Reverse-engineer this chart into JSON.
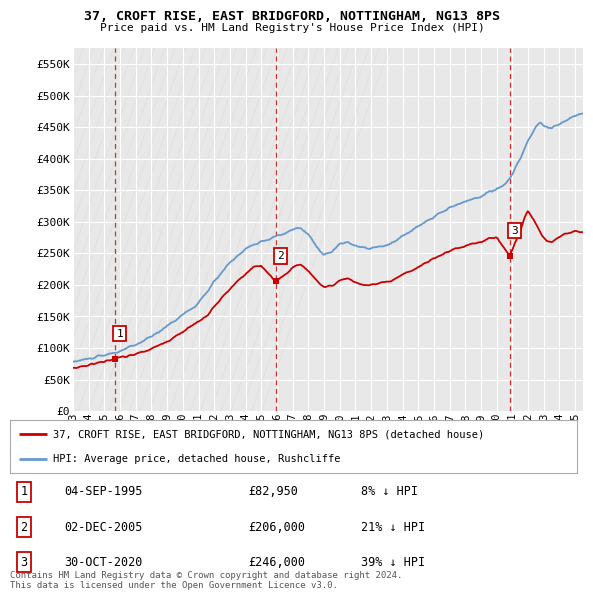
{
  "title": "37, CROFT RISE, EAST BRIDGFORD, NOTTINGHAM, NG13 8PS",
  "subtitle": "Price paid vs. HM Land Registry's House Price Index (HPI)",
  "ylabel_ticks": [
    "£0",
    "£50K",
    "£100K",
    "£150K",
    "£200K",
    "£250K",
    "£300K",
    "£350K",
    "£400K",
    "£450K",
    "£500K",
    "£550K"
  ],
  "ytick_values": [
    0,
    50000,
    100000,
    150000,
    200000,
    250000,
    300000,
    350000,
    400000,
    450000,
    500000,
    550000
  ],
  "ylim": [
    0,
    575000
  ],
  "xlim_start": 1993.0,
  "xlim_end": 2025.5,
  "xtick_years": [
    1993,
    1994,
    1995,
    1996,
    1997,
    1998,
    1999,
    2000,
    2001,
    2002,
    2003,
    2004,
    2005,
    2006,
    2007,
    2008,
    2009,
    2010,
    2011,
    2012,
    2013,
    2014,
    2015,
    2016,
    2017,
    2018,
    2019,
    2020,
    2021,
    2022,
    2023,
    2024,
    2025
  ],
  "sale_points": [
    {
      "year": 1995.67,
      "price": 82950,
      "label": "1"
    },
    {
      "year": 2005.92,
      "price": 206000,
      "label": "2"
    },
    {
      "year": 2020.83,
      "price": 246000,
      "label": "3"
    }
  ],
  "sale_info": [
    {
      "num": "1",
      "date": "04-SEP-1995",
      "price": "£82,950",
      "pct": "8% ↓ HPI"
    },
    {
      "num": "2",
      "date": "02-DEC-2005",
      "price": "£206,000",
      "pct": "21% ↓ HPI"
    },
    {
      "num": "3",
      "date": "30-OCT-2020",
      "price": "£246,000",
      "pct": "39% ↓ HPI"
    }
  ],
  "red_line_color": "#cc0000",
  "blue_line_color": "#6699cc",
  "plot_bg_color": "#e8e8e8",
  "background_color": "#ffffff",
  "grid_color": "#ffffff",
  "legend_label_red": "37, CROFT RISE, EAST BRIDGFORD, NOTTINGHAM, NG13 8PS (detached house)",
  "legend_label_blue": "HPI: Average price, detached house, Rushcliffe",
  "footer1": "Contains HM Land Registry data © Crown copyright and database right 2024.",
  "footer2": "This data is licensed under the Open Government Licence v3.0."
}
